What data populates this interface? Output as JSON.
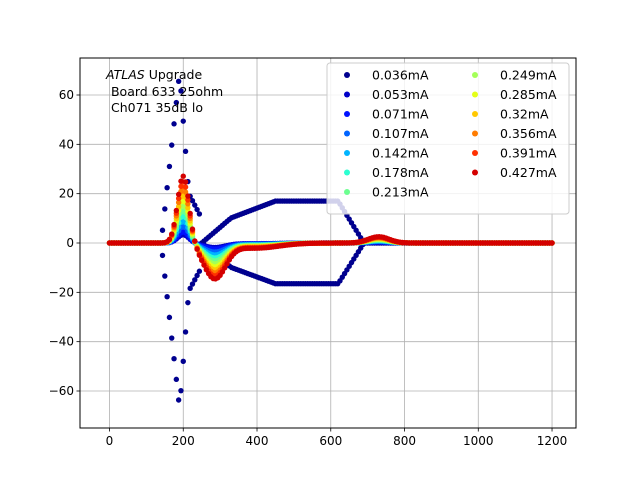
{
  "chart_data": {
    "type": "scatter",
    "title": "",
    "xlabel": "",
    "ylabel": "",
    "xlim": [
      -80,
      1265
    ],
    "ylim": [
      -75,
      75
    ],
    "xticks": [
      0,
      200,
      400,
      600,
      800,
      1000,
      1200
    ],
    "yticks": [
      -60,
      -40,
      -20,
      0,
      20,
      40,
      60
    ],
    "grid": true,
    "legend_position": "top-right",
    "legend_columns": 2,
    "annotation": {
      "line1_italic": "ATLAS",
      "line1_rest": " Upgrade",
      "line2": " Board 633 25ohm",
      "line3": " Ch071 35dB lo"
    },
    "series": [
      {
        "name": "0.036mA",
        "color": "#00008f",
        "amplitude": 0.036
      },
      {
        "name": "0.053mA",
        "color": "#0000c8",
        "amplitude": 0.053
      },
      {
        "name": "0.071mA",
        "color": "#0012ff",
        "amplitude": 0.071
      },
      {
        "name": "0.107mA",
        "color": "#0064ff",
        "amplitude": 0.107
      },
      {
        "name": "0.142mA",
        "color": "#00b4ff",
        "amplitude": 0.142
      },
      {
        "name": "0.178mA",
        "color": "#2cffd1",
        "amplitude": 0.178
      },
      {
        "name": "0.213mA",
        "color": "#6cff90",
        "amplitude": 0.213
      },
      {
        "name": "0.249mA",
        "color": "#a4ff58",
        "amplitude": 0.249
      },
      {
        "name": "0.285mA",
        "color": "#e4ff18",
        "amplitude": 0.285
      },
      {
        "name": "0.32mA",
        "color": "#ffc800",
        "amplitude": 0.32
      },
      {
        "name": "0.356mA",
        "color": "#ff7c00",
        "amplitude": 0.356
      },
      {
        "name": "0.391mA",
        "color": "#ff3000",
        "amplitude": 0.391
      },
      {
        "name": "0.427mA",
        "color": "#d40000",
        "amplitude": 0.427
      }
    ],
    "pulse_shape": {
      "sample_step": 6.25,
      "x_start": 0,
      "x_end": 1200,
      "pulse_start": 140,
      "peak_x": 200,
      "undershoot_x": 285,
      "recovery_end": 600,
      "bump_x": 730,
      "main_peak_per_mA": 64,
      "undershoot_per_mA": -33,
      "bump_per_mA": 6
    },
    "noisy_series_envelope": {
      "series": "0.036mA",
      "peak_max": 69,
      "trough_min": -67,
      "upper_plateau": 17,
      "lower_plateau": -17
    }
  }
}
